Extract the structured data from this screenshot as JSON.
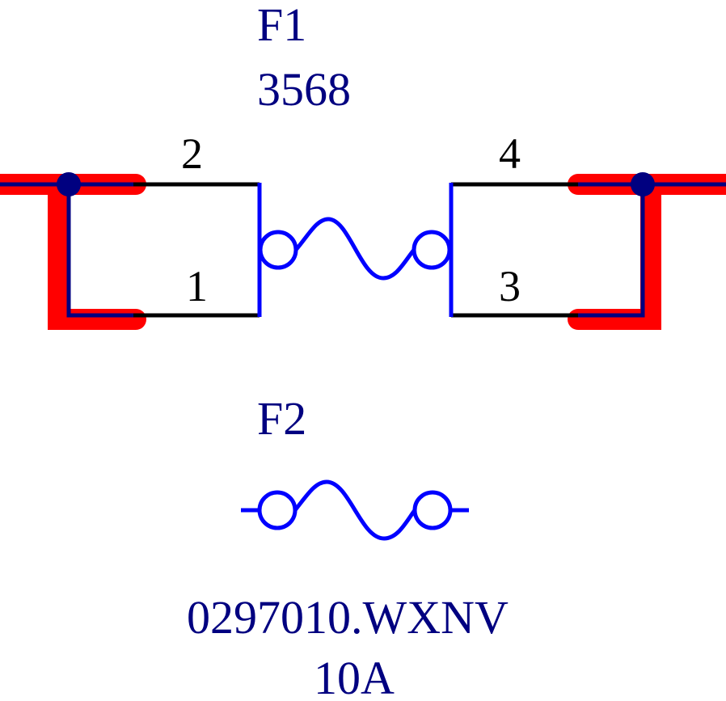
{
  "colors": {
    "background": "#ffffff",
    "component": "#0000ff",
    "label": "#000080",
    "pin_line": "#000000",
    "trace_highlight": "#ff0000",
    "wire": "#000080",
    "junction": "#000080"
  },
  "components": [
    {
      "designator": "F1",
      "value": "3568",
      "symbol": "fuse-four-pin",
      "pins": {
        "p1": "1",
        "p2": "2",
        "p3": "3",
        "p4": "4"
      }
    },
    {
      "designator": "F2",
      "value": "0297010.WXNV",
      "rating": "10A",
      "symbol": "fuse-two-pin"
    }
  ]
}
